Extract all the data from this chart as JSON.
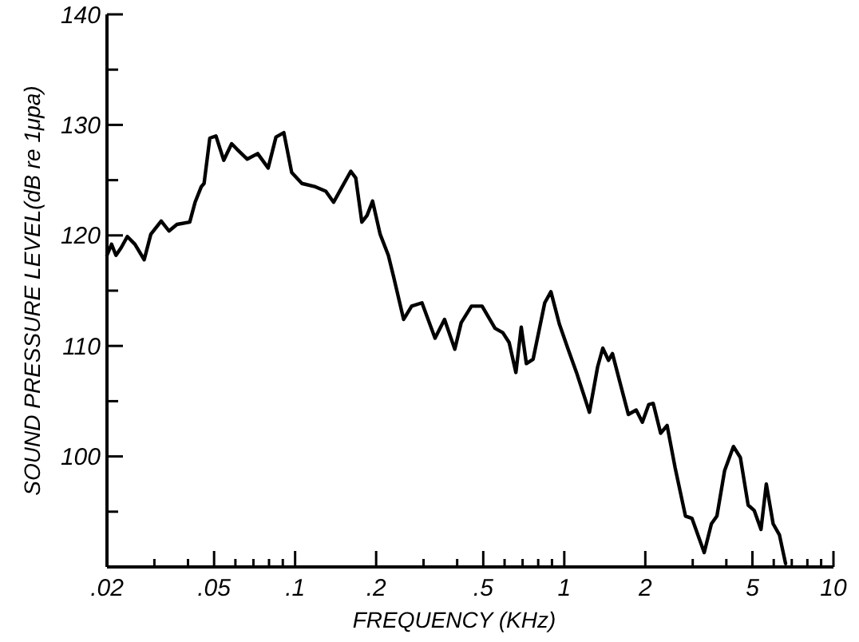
{
  "chart_data": {
    "type": "line",
    "xlabel": "FREQUENCY (KHz)",
    "ylabel": "SOUND PRESSURE LEVEL(dB re 1μpa)",
    "log": "x",
    "grid": false,
    "marker": "none",
    "line_style": "solid",
    "xlim": [
      0.02,
      10
    ],
    "ylim": [
      90,
      140
    ],
    "xticks": [
      {
        "value": 0.02,
        "label": ".02"
      },
      {
        "value": 0.03,
        "label": null
      },
      {
        "value": 0.04,
        "label": null
      },
      {
        "value": 0.05,
        "label": ".05"
      },
      {
        "value": 0.06,
        "label": null
      },
      {
        "value": 0.07,
        "label": null
      },
      {
        "value": 0.08,
        "label": null
      },
      {
        "value": 0.09,
        "label": null
      },
      {
        "value": 0.1,
        "label": ".1"
      },
      {
        "value": 0.2,
        "label": ".2"
      },
      {
        "value": 0.3,
        "label": null
      },
      {
        "value": 0.4,
        "label": null
      },
      {
        "value": 0.5,
        "label": ".5"
      },
      {
        "value": 0.6,
        "label": null
      },
      {
        "value": 0.7,
        "label": null
      },
      {
        "value": 0.8,
        "label": null
      },
      {
        "value": 0.9,
        "label": null
      },
      {
        "value": 1,
        "label": "1"
      },
      {
        "value": 2,
        "label": "2"
      },
      {
        "value": 3,
        "label": null
      },
      {
        "value": 4,
        "label": null
      },
      {
        "value": 5,
        "label": "5"
      },
      {
        "value": 6,
        "label": null
      },
      {
        "value": 7,
        "label": null
      },
      {
        "value": 8,
        "label": null
      },
      {
        "value": 9,
        "label": null
      },
      {
        "value": 10,
        "label": "10"
      }
    ],
    "yticks": [
      {
        "value": 95,
        "label": null
      },
      100,
      {
        "value": 105,
        "label": null
      },
      110,
      {
        "value": 115,
        "label": null
      },
      120,
      {
        "value": 125,
        "label": null
      },
      130,
      {
        "value": 135,
        "label": null
      },
      140
    ],
    "series": [
      {
        "color": "#000000",
        "x": [
          0.02,
          0.0208,
          0.0216,
          0.0226,
          0.0238,
          0.0254,
          0.0275,
          0.0291,
          0.0318,
          0.034,
          0.0364,
          0.0406,
          0.0425,
          0.0448,
          0.0459,
          0.0482,
          0.0508,
          0.0543,
          0.0581,
          0.0608,
          0.0664,
          0.0726,
          0.0794,
          0.0849,
          0.0908,
          0.0971,
          0.106,
          0.119,
          0.13,
          0.139,
          0.148,
          0.161,
          0.168,
          0.177,
          0.185,
          0.194,
          0.207,
          0.222,
          0.232,
          0.253,
          0.271,
          0.296,
          0.331,
          0.359,
          0.392,
          0.414,
          0.452,
          0.495,
          0.553,
          0.591,
          0.624,
          0.661,
          0.692,
          0.723,
          0.766,
          0.846,
          0.892,
          0.958,
          1.03,
          1.11,
          1.24,
          1.33,
          1.39,
          1.46,
          1.51,
          1.61,
          1.73,
          1.85,
          1.95,
          2.06,
          2.14,
          2.28,
          2.41,
          2.58,
          2.82,
          2.98,
          3.31,
          3.52,
          3.69,
          3.94,
          4.25,
          4.51,
          4.82,
          5.08,
          5.38,
          5.63,
          5.97,
          6.3,
          6.64
        ],
        "values": [
          118.2,
          119.2,
          118.2,
          118.9,
          119.9,
          119.2,
          117.8,
          120.1,
          121.3,
          120.4,
          121.0,
          121.2,
          123.0,
          124.4,
          124.7,
          128.8,
          129.0,
          126.8,
          128.3,
          127.8,
          126.9,
          127.4,
          126.1,
          128.9,
          129.3,
          125.7,
          124.7,
          124.4,
          124.0,
          123.0,
          124.2,
          125.8,
          125.2,
          121.2,
          121.8,
          123.1,
          120.1,
          118.2,
          116.3,
          112.4,
          113.6,
          113.9,
          110.7,
          112.4,
          109.7,
          112.1,
          113.6,
          113.6,
          111.6,
          111.2,
          110.3,
          107.6,
          111.7,
          108.4,
          108.8,
          113.9,
          114.9,
          112.0,
          109.8,
          107.6,
          104.0,
          108.1,
          109.8,
          108.7,
          109.3,
          106.7,
          103.8,
          104.2,
          103.1,
          104.7,
          104.8,
          102.1,
          102.8,
          99.0,
          94.6,
          94.4,
          91.3,
          93.9,
          94.6,
          98.7,
          100.9,
          99.9,
          95.6,
          95.1,
          93.4,
          97.5,
          93.9,
          92.9,
          90.3
        ]
      }
    ]
  }
}
